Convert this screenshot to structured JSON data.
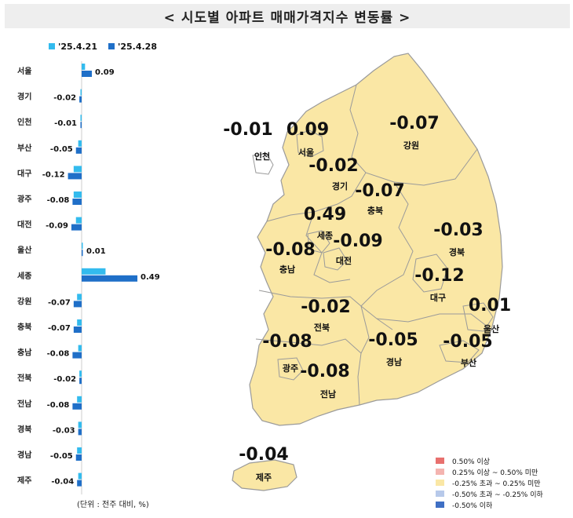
{
  "title": "< 시도별 아파트 매매가격지수 변동률 >",
  "unit_note": "(단위 : 전주 대비, %)",
  "colors": {
    "series_prev": "#33bbee",
    "series_curr": "#1f6fc8",
    "map_fill": "#fae7a5",
    "map_stroke": "#9a9a9a"
  },
  "legend": [
    {
      "label": "0.50% 이상",
      "color": "#e8706e"
    },
    {
      "label": "0.25% 이상 ~ 0.50% 미만",
      "color": "#f4b4b0"
    },
    {
      "label": "-0.25% 초과 ~ 0.25% 미만",
      "color": "#fae7a5"
    },
    {
      "label": "-0.50% 초과 ~ -0.25% 이하",
      "color": "#b7c9ea"
    },
    {
      "label": "-0.50% 이하",
      "color": "#3f6fc4"
    }
  ],
  "chart_data": {
    "type": "bar",
    "orientation": "horizontal",
    "categories": [
      "서울",
      "경기",
      "인천",
      "부산",
      "대구",
      "광주",
      "대전",
      "울산",
      "세종",
      "강원",
      "충북",
      "충남",
      "전북",
      "전남",
      "경북",
      "경남",
      "제주"
    ],
    "series": [
      {
        "name": "'25.4.21",
        "values": [
          0.03,
          -0.01,
          -0.01,
          -0.03,
          -0.07,
          -0.07,
          -0.05,
          0.0,
          0.21,
          -0.04,
          -0.04,
          -0.03,
          -0.02,
          -0.04,
          -0.03,
          -0.04,
          -0.03
        ]
      },
      {
        "name": "'25.4.28",
        "values": [
          0.09,
          -0.02,
          -0.01,
          -0.05,
          -0.12,
          -0.08,
          -0.09,
          0.01,
          0.49,
          -0.07,
          -0.07,
          -0.08,
          -0.02,
          -0.08,
          -0.03,
          -0.05,
          -0.04
        ]
      }
    ],
    "data_labels": [
      "0.09",
      "-0.02",
      "-0.01",
      "-0.05",
      "-0.12",
      "-0.08",
      "-0.09",
      "0.01",
      "0.49",
      "-0.07",
      "-0.07",
      "-0.08",
      "-0.02",
      "-0.08",
      "-0.03",
      "-0.05",
      "-0.04"
    ],
    "legend_position": "top"
  },
  "map_labels": [
    {
      "name": "인천",
      "value": "-0.01"
    },
    {
      "name": "서울",
      "value": "0.09"
    },
    {
      "name": "강원",
      "value": "-0.07"
    },
    {
      "name": "경기",
      "value": "-0.02"
    },
    {
      "name": "충북",
      "value": "-0.07"
    },
    {
      "name": "세종",
      "value": "0.49"
    },
    {
      "name": "경북",
      "value": "-0.03"
    },
    {
      "name": "충남",
      "value": "-0.08"
    },
    {
      "name": "대전",
      "value": "-0.09"
    },
    {
      "name": "대구",
      "value": "-0.12"
    },
    {
      "name": "울산",
      "value": "0.01"
    },
    {
      "name": "전북",
      "value": "-0.02"
    },
    {
      "name": "광주",
      "value": "-0.08"
    },
    {
      "name": "경남",
      "value": "-0.05"
    },
    {
      "name": "부산",
      "value": "-0.05"
    },
    {
      "name": "전남",
      "value": "-0.08"
    },
    {
      "name": "제주",
      "value": "-0.04"
    }
  ]
}
